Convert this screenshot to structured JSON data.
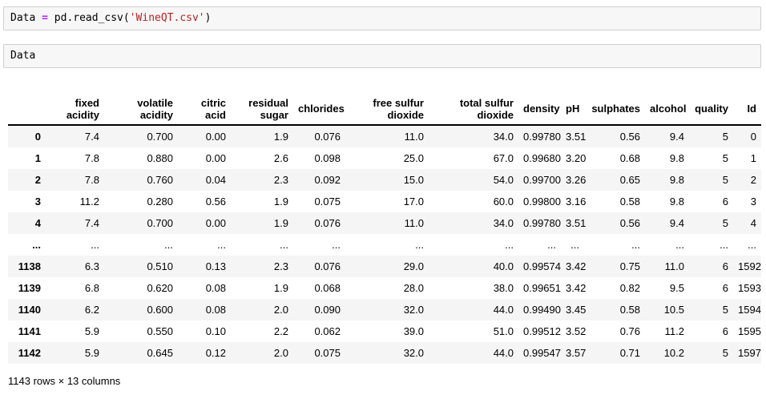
{
  "code_cells": [
    {
      "label": "read-csv-cell",
      "tokens": [
        {
          "t": "Data ",
          "c": "plain"
        },
        {
          "t": "=",
          "c": "op"
        },
        {
          "t": " pd.read_csv(",
          "c": "plain"
        },
        {
          "t": "'WineQT.csv'",
          "c": "str"
        },
        {
          "t": ")",
          "c": "plain"
        }
      ]
    },
    {
      "label": "display-data-cell",
      "tokens": [
        {
          "t": "Data",
          "c": "plain"
        }
      ]
    }
  ],
  "dataframe": {
    "columns": [
      "fixed acidity",
      "volatile acidity",
      "citric acid",
      "residual sugar",
      "chlorides",
      "free sulfur dioxide",
      "total sulfur dioxide",
      "density",
      "pH",
      "sulphates",
      "alcohol",
      "quality",
      "Id"
    ],
    "rows": [
      {
        "index": "0",
        "values": [
          "7.4",
          "0.700",
          "0.00",
          "1.9",
          "0.076",
          "11.0",
          "34.0",
          "0.99780",
          "3.51",
          "0.56",
          "9.4",
          "5",
          "0"
        ]
      },
      {
        "index": "1",
        "values": [
          "7.8",
          "0.880",
          "0.00",
          "2.6",
          "0.098",
          "25.0",
          "67.0",
          "0.99680",
          "3.20",
          "0.68",
          "9.8",
          "5",
          "1"
        ]
      },
      {
        "index": "2",
        "values": [
          "7.8",
          "0.760",
          "0.04",
          "2.3",
          "0.092",
          "15.0",
          "54.0",
          "0.99700",
          "3.26",
          "0.65",
          "9.8",
          "5",
          "2"
        ]
      },
      {
        "index": "3",
        "values": [
          "11.2",
          "0.280",
          "0.56",
          "1.9",
          "0.075",
          "17.0",
          "60.0",
          "0.99800",
          "3.16",
          "0.58",
          "9.8",
          "6",
          "3"
        ]
      },
      {
        "index": "4",
        "values": [
          "7.4",
          "0.700",
          "0.00",
          "1.9",
          "0.076",
          "11.0",
          "34.0",
          "0.99780",
          "3.51",
          "0.56",
          "9.4",
          "5",
          "4"
        ]
      },
      {
        "index": "...",
        "values": [
          "...",
          "...",
          "...",
          "...",
          "...",
          "...",
          "...",
          "...",
          "...",
          "...",
          "...",
          "...",
          "..."
        ]
      },
      {
        "index": "1138",
        "values": [
          "6.3",
          "0.510",
          "0.13",
          "2.3",
          "0.076",
          "29.0",
          "40.0",
          "0.99574",
          "3.42",
          "0.75",
          "11.0",
          "6",
          "1592"
        ]
      },
      {
        "index": "1139",
        "values": [
          "6.8",
          "0.620",
          "0.08",
          "1.9",
          "0.068",
          "28.0",
          "38.0",
          "0.99651",
          "3.42",
          "0.82",
          "9.5",
          "6",
          "1593"
        ]
      },
      {
        "index": "1140",
        "values": [
          "6.2",
          "0.600",
          "0.08",
          "2.0",
          "0.090",
          "32.0",
          "44.0",
          "0.99490",
          "3.45",
          "0.58",
          "10.5",
          "5",
          "1594"
        ]
      },
      {
        "index": "1141",
        "values": [
          "5.9",
          "0.550",
          "0.10",
          "2.2",
          "0.062",
          "39.0",
          "51.0",
          "0.99512",
          "3.52",
          "0.76",
          "11.2",
          "6",
          "1595"
        ]
      },
      {
        "index": "1142",
        "values": [
          "5.9",
          "0.645",
          "0.12",
          "2.0",
          "0.075",
          "32.0",
          "44.0",
          "0.99547",
          "3.57",
          "0.71",
          "10.2",
          "5",
          "1597"
        ]
      }
    ],
    "footer": "1143 rows × 13 columns"
  },
  "colors": {
    "operator": "#AA22FF",
    "string": "#BA2121",
    "row_stripe": "#f5f5f5",
    "cell_background": "#f7f7f7",
    "cell_border": "#cfcfcf",
    "header_rule": "#000000"
  }
}
